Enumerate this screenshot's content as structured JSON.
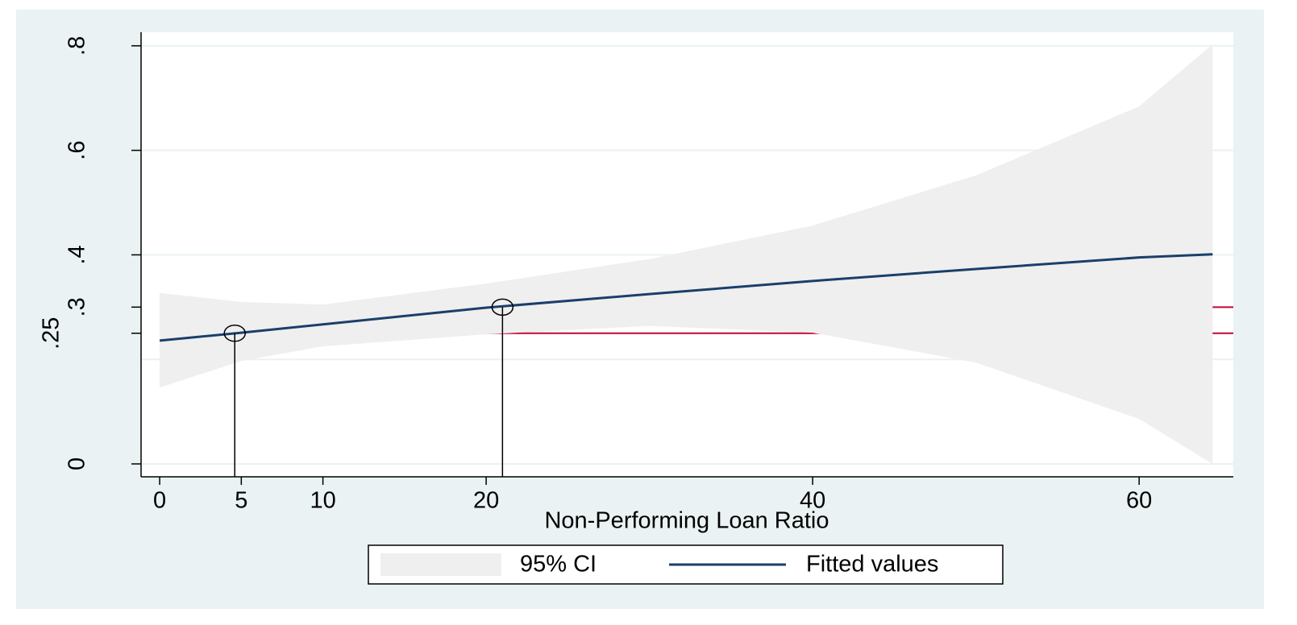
{
  "chart_data": {
    "type": "line",
    "x_label": "Non-Performing Loan Ratio",
    "xlim": [
      -1.14,
      65.77
    ],
    "ylim": [
      -0.0216,
      0.826
    ],
    "xticks": [
      0,
      5,
      10,
      20,
      40,
      60
    ],
    "yticks": [
      0,
      {
        "value": 0.25,
        "label": ".25"
      },
      {
        "value": 0.3,
        "label": ".3"
      },
      {
        "value": 0.4,
        "label": ".4"
      },
      {
        "value": 0.6,
        "label": ".6"
      },
      {
        "value": 0.8,
        "label": ".8"
      }
    ],
    "ygrid": [
      0,
      0.2,
      0.4,
      0.6,
      0.8
    ],
    "x": [
      0,
      5,
      10,
      20,
      30,
      40,
      50,
      60,
      64.5
    ],
    "series": [
      {
        "name": "95% CI",
        "color": "#efefef",
        "lower": [
          0.146,
          0.197,
          0.225,
          0.248,
          0.264,
          0.251,
          0.194,
          0.086,
          0
        ],
        "upper": [
          0.327,
          0.31,
          0.305,
          0.345,
          0.392,
          0.456,
          0.552,
          0.684,
          0.803
        ]
      },
      {
        "name": "Fitted values",
        "color": "#1a3f6b",
        "values": [
          0.236,
          0.251,
          0.267,
          0.299,
          0.325,
          0.35,
          0.373,
          0.395,
          0.401
        ]
      }
    ],
    "reference_points": [
      {
        "x": 4.6,
        "y": 0.25
      },
      {
        "x": 21,
        "y": 0.3
      }
    ],
    "reference_color": "#c10534"
  }
}
